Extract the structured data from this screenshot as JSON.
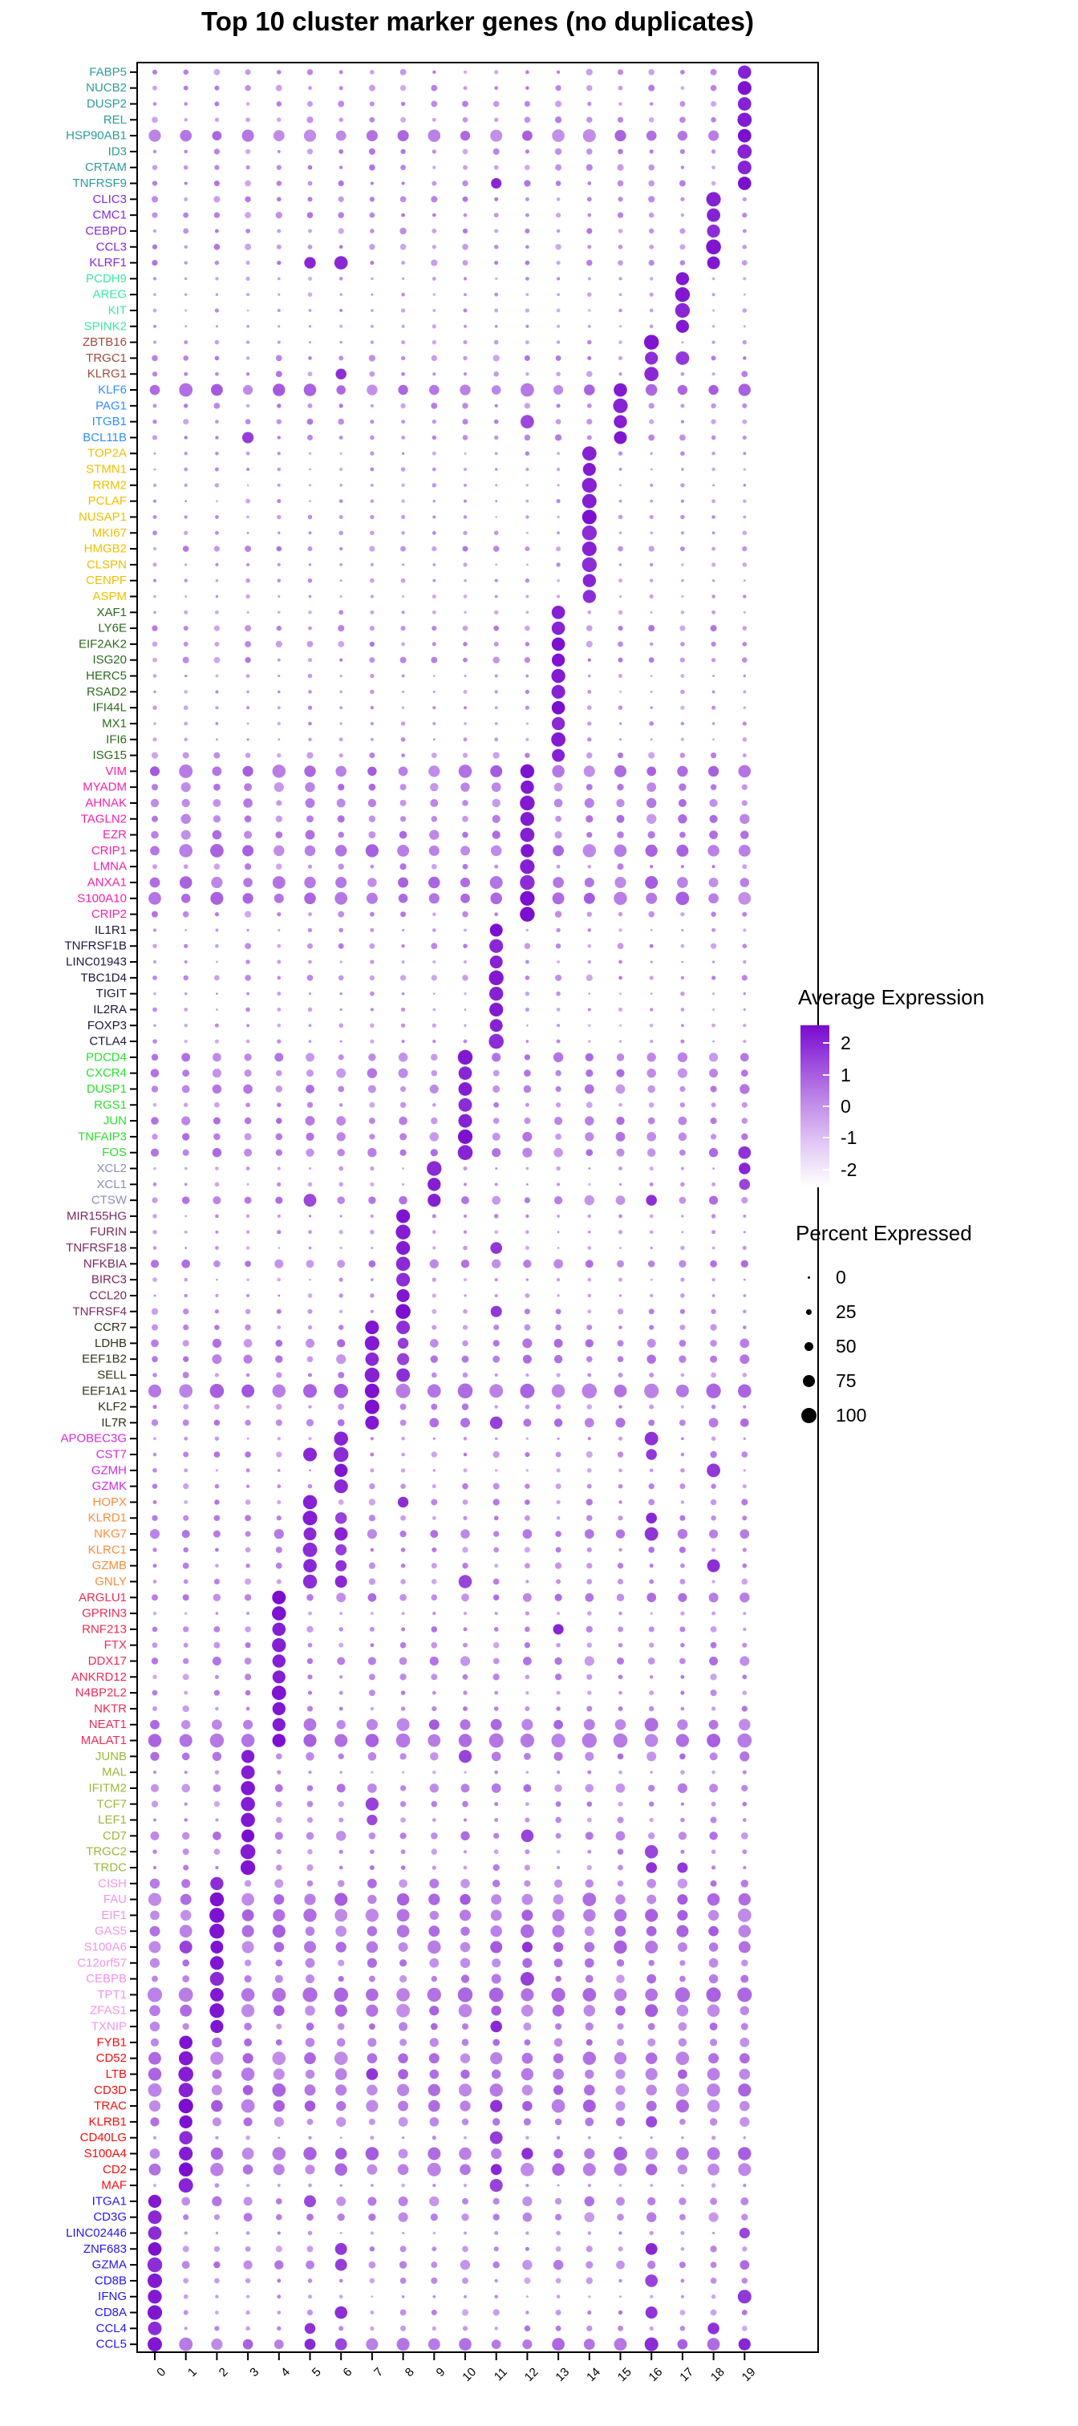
{
  "title": "Top 10 cluster marker genes (no duplicates)",
  "legend": {
    "expression": {
      "title": "Average Expression",
      "ticks": [
        2,
        1,
        0,
        -1,
        -2
      ],
      "range": [
        -2.56,
        2.56
      ],
      "color_high": "#7A0ACF",
      "color_low": "#FFFFFF"
    },
    "percent": {
      "title": "Percent Expressed",
      "ticks": [
        0,
        25,
        50,
        75,
        100
      ],
      "dot_diameters": [
        3,
        7,
        11,
        15,
        19
      ],
      "dot_color": "#000000"
    }
  },
  "chart_data": {
    "type": "scatter",
    "variant": "seurat-dotplot",
    "title": "Top 10 cluster marker genes (no duplicates)",
    "x": [
      "0",
      "1",
      "2",
      "3",
      "4",
      "5",
      "6",
      "7",
      "8",
      "9",
      "10",
      "11",
      "12",
      "13",
      "14",
      "15",
      "16",
      "17",
      "18",
      "19"
    ],
    "xlabel": "",
    "ylabel": "",
    "grid": false,
    "panel_border": "#000000",
    "encoding": {
      "dot_size": "percent of cells expressing gene (0-100)",
      "dot_color": "scaled average expression, -2.5 (white) to 2.5 (dark purple)",
      "row": "gene (labels colored by the cluster the gene marks)",
      "column": "cluster id 0-19"
    },
    "profiles": {
      "s": "sparse background: pct ~4-22, expr ~-0.6..0.3",
      "m": "moderate background: pct ~12-38, expr ~-0.5..0.6",
      "w": "widely expressed: pct ~30-62, expr ~-0.2..0.8",
      "b": "broad/high in all clusters: pct ~55-88, expr ~0..1.1",
      "B": "very large in all clusters: pct ~80-98, expr ~0.2..1.2",
      "own_cluster": "pct ~82-98, expr ~1.9-2.5 (large dark dot)",
      "extra_hi": "pct ~65-90, expr ~1.4-2.1"
    },
    "cluster_label_colors": {
      "19": "#2E9B9B",
      "18": "#8629DC",
      "17": "#3CE8A4",
      "16": "#A14A3E",
      "15": "#2E8FFF",
      "14": "#EFC000",
      "13": "#2D6A1F",
      "12": "#F522A8",
      "11": "#1A1A3C",
      "10": "#2BDF2B",
      "9": "#8C8CBE",
      "8": "#7A2961",
      "7": "#33321B",
      "6": "#D22CE0",
      "5": "#FB8C3C",
      "4": "#EB2D56",
      "3": "#9BB83E",
      "2": "#F095E8",
      "1": "#F80D0D",
      "0": "#2217EE"
    },
    "genes": [
      [
        "FABP5",
        19,
        "m"
      ],
      [
        "NUCB2",
        19,
        "m"
      ],
      [
        "DUSP2",
        19,
        "m"
      ],
      [
        "REL",
        19,
        "m"
      ],
      [
        "HSP90AB1",
        19,
        "b"
      ],
      [
        "ID3",
        19,
        "m"
      ],
      [
        "CRTAM",
        19,
        "m"
      ],
      [
        "TNFRSF9",
        19,
        "m",
        [
          11
        ]
      ],
      [
        "CLIC3",
        18,
        "m"
      ],
      [
        "CMC1",
        18,
        "m"
      ],
      [
        "CEBPD",
        18,
        "m"
      ],
      [
        "CCL3",
        18,
        "m"
      ],
      [
        "KLRF1",
        18,
        "m",
        [
          5,
          6
        ]
      ],
      [
        "PCDH9",
        17,
        "s"
      ],
      [
        "AREG",
        17,
        "s"
      ],
      [
        "KIT",
        17,
        "s"
      ],
      [
        "SPINK2",
        17,
        "s"
      ],
      [
        "ZBTB16",
        16,
        "s"
      ],
      [
        "TRGC1",
        16,
        "m",
        [
          17
        ]
      ],
      [
        "KLRG1",
        16,
        "m",
        [
          6
        ]
      ],
      [
        "KLF6",
        15,
        "b"
      ],
      [
        "PAG1",
        15,
        "m"
      ],
      [
        "ITGB1",
        15,
        "m",
        [
          12
        ]
      ],
      [
        "BCL11B",
        15,
        "m",
        [
          3
        ]
      ],
      [
        "TOP2A",
        14,
        "s"
      ],
      [
        "STMN1",
        14,
        "s"
      ],
      [
        "RRM2",
        14,
        "s"
      ],
      [
        "PCLAF",
        14,
        "s"
      ],
      [
        "NUSAP1",
        14,
        "s"
      ],
      [
        "MKI67",
        14,
        "s"
      ],
      [
        "HMGB2",
        14,
        "m"
      ],
      [
        "CLSPN",
        14,
        "s"
      ],
      [
        "CENPF",
        14,
        "s"
      ],
      [
        "ASPM",
        14,
        "s"
      ],
      [
        "XAF1",
        13,
        "s"
      ],
      [
        "LY6E",
        13,
        "m"
      ],
      [
        "EIF2AK2",
        13,
        "m"
      ],
      [
        "ISG20",
        13,
        "m"
      ],
      [
        "HERC5",
        13,
        "s"
      ],
      [
        "RSAD2",
        13,
        "s"
      ],
      [
        "IFI44L",
        13,
        "s"
      ],
      [
        "MX1",
        13,
        "s"
      ],
      [
        "IFI6",
        13,
        "s"
      ],
      [
        "ISG15",
        13,
        "m"
      ],
      [
        "VIM",
        12,
        "b"
      ],
      [
        "MYADM",
        12,
        "w"
      ],
      [
        "AHNAK",
        12,
        "w"
      ],
      [
        "TAGLN2",
        12,
        "w"
      ],
      [
        "EZR",
        12,
        "w"
      ],
      [
        "CRIP1",
        12,
        "b"
      ],
      [
        "LMNA",
        12,
        "m"
      ],
      [
        "ANXA1",
        12,
        "b"
      ],
      [
        "S100A10",
        12,
        "b"
      ],
      [
        "CRIP2",
        12,
        "m"
      ],
      [
        "IL1R1",
        11,
        "s"
      ],
      [
        "TNFRSF1B",
        11,
        "m"
      ],
      [
        "LINC01943",
        11,
        "s"
      ],
      [
        "TBC1D4",
        11,
        "m"
      ],
      [
        "TIGIT",
        11,
        "s"
      ],
      [
        "IL2RA",
        11,
        "s"
      ],
      [
        "FOXP3",
        11,
        "s"
      ],
      [
        "CTLA4",
        11,
        "s"
      ],
      [
        "PDCD4",
        10,
        "w"
      ],
      [
        "CXCR4",
        10,
        "w"
      ],
      [
        "DUSP1",
        10,
        "w"
      ],
      [
        "RGS1",
        10,
        "m"
      ],
      [
        "JUN",
        10,
        "w"
      ],
      [
        "TNFAIP3",
        10,
        "w"
      ],
      [
        "FOS",
        10,
        "w",
        [
          19
        ]
      ],
      [
        "XCL2",
        9,
        "s",
        [
          19
        ]
      ],
      [
        "XCL1",
        9,
        "s",
        [
          19
        ]
      ],
      [
        "CTSW",
        9,
        "w",
        [
          5,
          16
        ]
      ],
      [
        "MIR155HG",
        8,
        "s"
      ],
      [
        "FURIN",
        8,
        "s"
      ],
      [
        "TNFRSF18",
        8,
        "s",
        [
          11
        ]
      ],
      [
        "NFKBIA",
        8,
        "w"
      ],
      [
        "BIRC3",
        8,
        "s"
      ],
      [
        "CCL20",
        8,
        "s"
      ],
      [
        "TNFRSF4",
        8,
        "m",
        [
          11
        ]
      ],
      [
        "CCR7",
        7,
        "m",
        [
          8
        ]
      ],
      [
        "LDHB",
        7,
        "w",
        [
          8
        ]
      ],
      [
        "EEF1B2",
        7,
        "w",
        [
          8
        ]
      ],
      [
        "SELL",
        7,
        "m",
        [
          8
        ]
      ],
      [
        "EEF1A1",
        7,
        "B"
      ],
      [
        "KLF2",
        7,
        "m"
      ],
      [
        "IL7R",
        7,
        "w",
        [
          11
        ]
      ],
      [
        "APOBEC3G",
        6,
        "s",
        [
          16
        ]
      ],
      [
        "CST7",
        6,
        "m",
        [
          5,
          16
        ]
      ],
      [
        "GZMH",
        6,
        "s",
        [
          18
        ]
      ],
      [
        "GZMK",
        6,
        "m"
      ],
      [
        "HOPX",
        5,
        "m",
        [
          8
        ]
      ],
      [
        "KLRD1",
        5,
        "m",
        [
          6,
          16
        ]
      ],
      [
        "NKG7",
        5,
        "w",
        [
          6,
          16
        ]
      ],
      [
        "KLRC1",
        5,
        "m",
        [
          6
        ]
      ],
      [
        "GZMB",
        5,
        "m",
        [
          6,
          18
        ]
      ],
      [
        "GNLY",
        5,
        "m",
        [
          6,
          10
        ]
      ],
      [
        "ARGLU1",
        4,
        "w"
      ],
      [
        "GPRIN3",
        4,
        "s"
      ],
      [
        "RNF213",
        4,
        "m",
        [
          13
        ]
      ],
      [
        "FTX",
        4,
        "m"
      ],
      [
        "DDX17",
        4,
        "w"
      ],
      [
        "ANKRD12",
        4,
        "m"
      ],
      [
        "N4BP2L2",
        4,
        "m"
      ],
      [
        "NKTR",
        4,
        "m"
      ],
      [
        "NEAT1",
        4,
        "b"
      ],
      [
        "MALAT1",
        4,
        "B"
      ],
      [
        "JUNB",
        3,
        "w",
        [
          10
        ]
      ],
      [
        "MAL",
        3,
        "s"
      ],
      [
        "IFITM2",
        3,
        "w"
      ],
      [
        "TCF7",
        3,
        "m",
        [
          7
        ]
      ],
      [
        "LEF1",
        3,
        "m",
        [
          7
        ]
      ],
      [
        "CD7",
        3,
        "w",
        [
          12
        ]
      ],
      [
        "TRGC2",
        3,
        "m",
        [
          16
        ]
      ],
      [
        "TRDC",
        3,
        "m",
        [
          16,
          17
        ]
      ],
      [
        "CISH",
        2,
        "w"
      ],
      [
        "FAU",
        2,
        "b"
      ],
      [
        "EIF1",
        2,
        "b"
      ],
      [
        "GAS5",
        2,
        "b"
      ],
      [
        "S100A6",
        2,
        "b",
        [
          1,
          12
        ]
      ],
      [
        "C12orf57",
        2,
        "w"
      ],
      [
        "CEBPB",
        2,
        "w",
        [
          12
        ]
      ],
      [
        "TPT1",
        2,
        "B"
      ],
      [
        "ZFAS1",
        2,
        "b"
      ],
      [
        "TXNIP",
        2,
        "w",
        [
          11
        ]
      ],
      [
        "FYB1",
        1,
        "w"
      ],
      [
        "CD52",
        1,
        "b"
      ],
      [
        "LTB",
        1,
        "b",
        [
          7
        ]
      ],
      [
        "CD3D",
        1,
        "b"
      ],
      [
        "TRAC",
        1,
        "b",
        [
          11
        ]
      ],
      [
        "KLRB1",
        1,
        "w",
        [
          16
        ]
      ],
      [
        "CD40LG",
        1,
        "s",
        [
          11
        ]
      ],
      [
        "S100A4",
        1,
        "b",
        [
          12
        ]
      ],
      [
        "CD2",
        1,
        "b",
        [
          11
        ]
      ],
      [
        "MAF",
        1,
        "s",
        [
          11
        ]
      ],
      [
        "ITGA1",
        0,
        "w",
        [
          5
        ]
      ],
      [
        "CD3G",
        0,
        "w"
      ],
      [
        "LINC02446",
        0,
        "s",
        [
          19
        ]
      ],
      [
        "ZNF683",
        0,
        "m",
        [
          6,
          16
        ]
      ],
      [
        "GZMA",
        0,
        "w",
        [
          6
        ]
      ],
      [
        "CD8B",
        0,
        "m",
        [
          16
        ]
      ],
      [
        "IFNG",
        0,
        "s",
        [
          19
        ]
      ],
      [
        "CD8A",
        0,
        "m",
        [
          6,
          16
        ]
      ],
      [
        "CCL4",
        0,
        "m",
        [
          5,
          18
        ]
      ],
      [
        "CCL5",
        0,
        "b",
        [
          5,
          6,
          16,
          19
        ]
      ]
    ]
  }
}
